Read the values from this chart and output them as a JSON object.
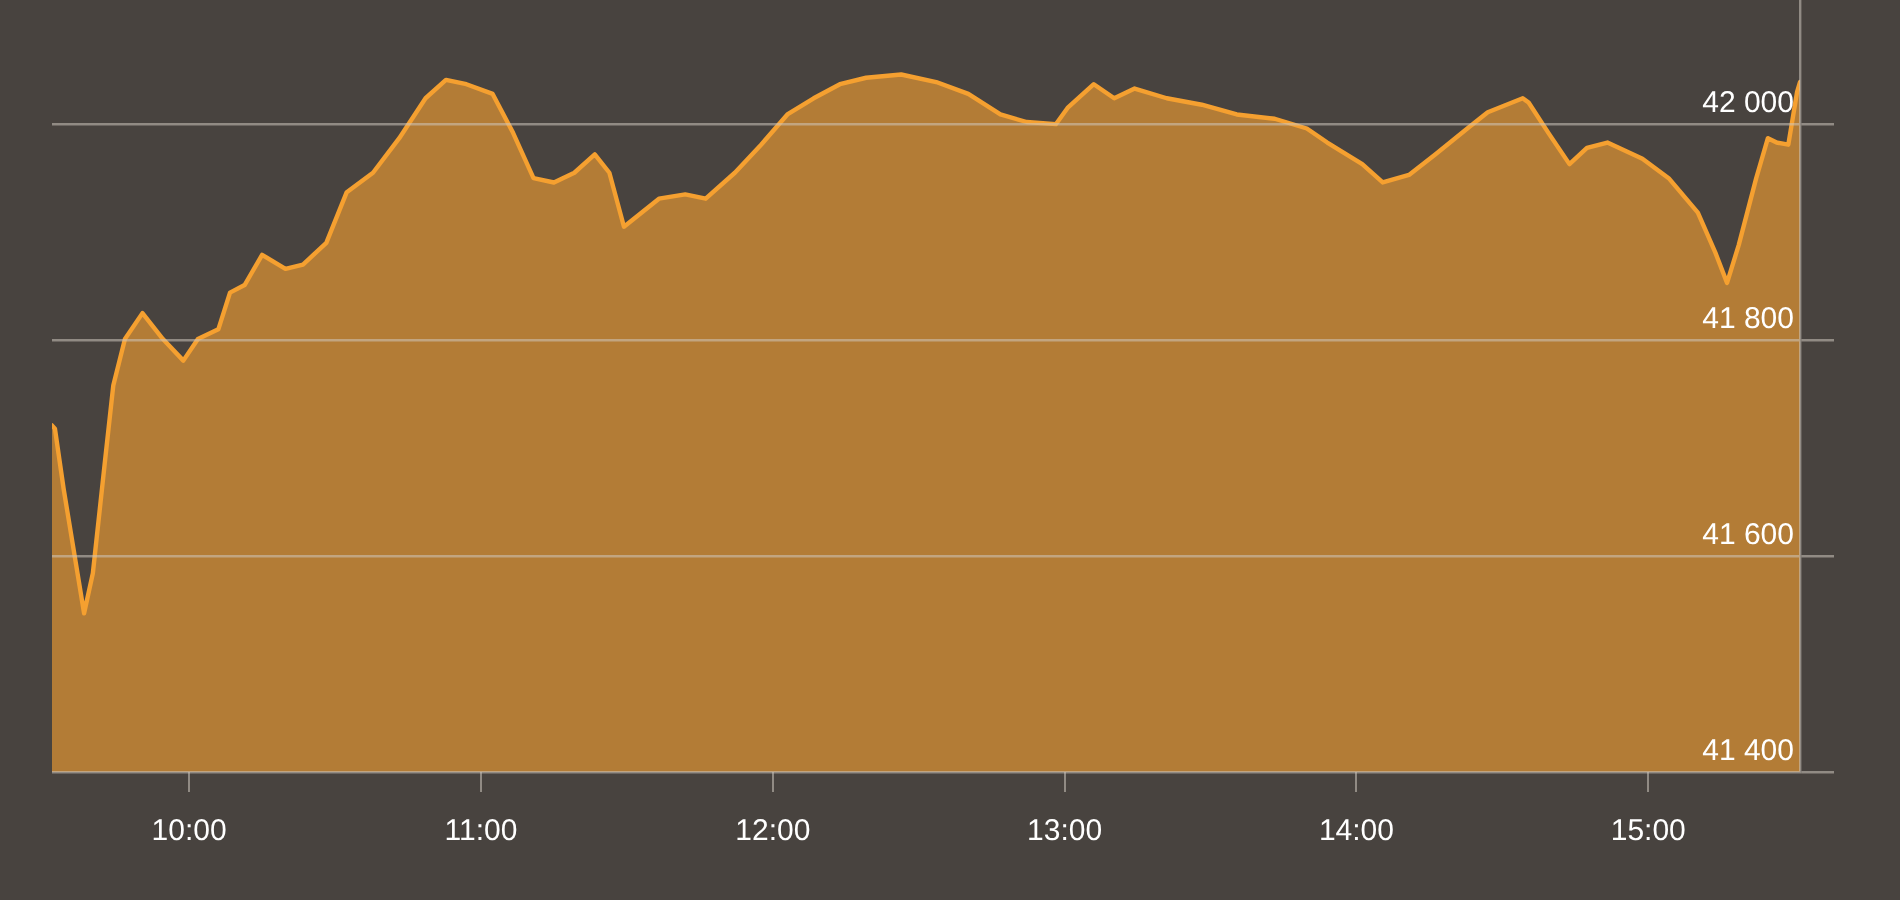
{
  "chart_data": {
    "type": "area",
    "color": "#f5a030",
    "x": [
      9.53,
      9.54,
      9.57,
      9.64,
      9.67,
      9.71,
      9.74,
      9.78,
      9.84,
      9.91,
      9.98,
      10.03,
      10.1,
      10.14,
      10.19,
      10.25,
      10.33,
      10.39,
      10.47,
      10.54,
      10.63,
      10.72,
      10.81,
      10.88,
      10.95,
      11.04,
      11.11,
      11.18,
      11.25,
      11.32,
      11.39,
      11.44,
      11.49,
      11.55,
      11.61,
      11.7,
      11.77,
      11.87,
      11.96,
      12.05,
      12.14,
      12.23,
      12.32,
      12.44,
      12.56,
      12.67,
      12.78,
      12.87,
      12.97,
      13.01,
      13.1,
      13.17,
      13.24,
      13.35,
      13.47,
      13.59,
      13.72,
      13.83,
      13.9,
      14.02,
      14.09,
      14.18,
      14.27,
      14.38,
      14.45,
      14.57,
      14.59,
      14.66,
      14.73,
      14.79,
      14.86,
      14.98,
      15.07,
      15.17,
      15.23,
      15.27,
      15.31,
      15.37,
      15.41,
      15.44,
      15.48,
      15.51,
      15.52
    ],
    "values": [
      41721,
      41718,
      41662,
      41547,
      41584,
      41684,
      41758,
      41801,
      41825,
      41801,
      41781,
      41801,
      41810,
      41844,
      41851,
      41879,
      41866,
      41870,
      41890,
      41937,
      41955,
      41987,
      42024,
      42041,
      42037,
      42028,
      41992,
      41950,
      41946,
      41955,
      41972,
      41955,
      41905,
      41918,
      41931,
      41935,
      41931,
      41955,
      41981,
      42009,
      42024,
      42037,
      42043,
      42046,
      42039,
      42028,
      42009,
      42002,
      42000,
      42015,
      42037,
      42024,
      42033,
      42024,
      42018,
      42009,
      42005,
      41996,
      41983,
      41963,
      41946,
      41953,
      41972,
      41996,
      42011,
      42024,
      42020,
      41991,
      41963,
      41978,
      41983,
      41968,
      41950,
      41918,
      41881,
      41853,
      41888,
      41950,
      41987,
      41983,
      41981,
      42030,
      42039
    ],
    "xlim": [
      9.53,
      15.52
    ],
    "xticks": [
      {
        "value": 10,
        "label": "10:00"
      },
      {
        "value": 11,
        "label": "11:00"
      },
      {
        "value": 12,
        "label": "12:00"
      },
      {
        "value": 13,
        "label": "13:00"
      },
      {
        "value": 14,
        "label": "14:00"
      },
      {
        "value": 15,
        "label": "15:00"
      }
    ],
    "ylim": [
      41400,
      42115
    ],
    "yticks": [
      {
        "value": 41400,
        "label": "41 400"
      },
      {
        "value": 41600,
        "label": "41 600"
      },
      {
        "value": 41800,
        "label": "41 800"
      },
      {
        "value": 42000,
        "label": "42 000"
      }
    ],
    "grid": "y"
  }
}
